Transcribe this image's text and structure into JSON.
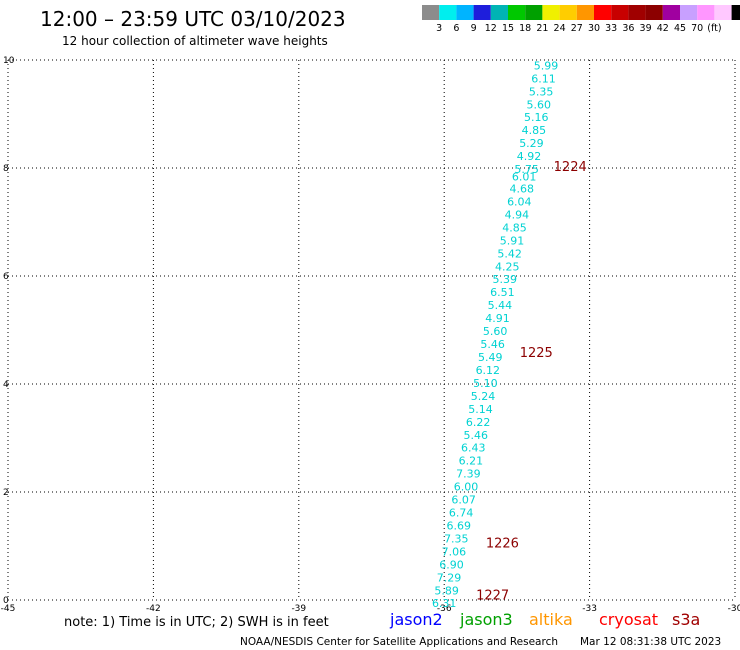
{
  "header": {
    "title": "12:00 – 23:59 UTC 03/10/2023",
    "subtitle": "12 hour collection of altimeter wave heights"
  },
  "colorbar": {
    "colors": [
      "#8c8c8c",
      "#00eeee",
      "#00b4ff",
      "#1e1edc",
      "#00b4b4",
      "#00c800",
      "#00a000",
      "#f0f000",
      "#ffcd00",
      "#ff9600",
      "#ff0000",
      "#c80000",
      "#a00000",
      "#8c0000",
      "#a000a0",
      "#c8a0ff",
      "#ff96ff",
      "#ffc8ff",
      "#000000"
    ],
    "labels": [
      "3",
      "6",
      "9",
      "12",
      "15",
      "18",
      "21",
      "24",
      "27",
      "30",
      "33",
      "36",
      "39",
      "42",
      "45",
      "70",
      "(ft)"
    ]
  },
  "chart_data": {
    "type": "scatter",
    "xlim": [
      -45,
      -30
    ],
    "ylim": [
      0,
      10
    ],
    "x_ticks": [
      "-45",
      "-42",
      "-39",
      "-36",
      "-33",
      "-30"
    ],
    "y_ticks": [
      "0",
      "2",
      "4",
      "6",
      "8",
      "10"
    ],
    "grid": true,
    "series": [
      {
        "name": "jason3",
        "color": "#00d2d2",
        "points": [
          {
            "x": -33.9,
            "y": 9.9,
            "v": "5.99"
          },
          {
            "x": -33.95,
            "y": 9.66,
            "v": "6.11"
          },
          {
            "x": -34.0,
            "y": 9.42,
            "v": "5.35"
          },
          {
            "x": -34.05,
            "y": 9.18,
            "v": "5.60"
          },
          {
            "x": -34.1,
            "y": 8.94,
            "v": "5.16"
          },
          {
            "x": -34.15,
            "y": 8.7,
            "v": "4.85"
          },
          {
            "x": -34.2,
            "y": 8.46,
            "v": "5.29"
          },
          {
            "x": -34.25,
            "y": 8.22,
            "v": "4.92"
          },
          {
            "x": -34.3,
            "y": 7.98,
            "v": "5.75"
          },
          {
            "x": -34.35,
            "y": 7.84,
            "v": "6.01"
          },
          {
            "x": -34.4,
            "y": 7.62,
            "v": "4.68"
          },
          {
            "x": -34.45,
            "y": 7.38,
            "v": "6.04"
          },
          {
            "x": -34.5,
            "y": 7.14,
            "v": "4.94"
          },
          {
            "x": -34.55,
            "y": 6.9,
            "v": "4.85"
          },
          {
            "x": -34.6,
            "y": 6.66,
            "v": "5.91"
          },
          {
            "x": -34.65,
            "y": 6.42,
            "v": "5.42"
          },
          {
            "x": -34.7,
            "y": 6.18,
            "v": "4.25"
          },
          {
            "x": -34.75,
            "y": 5.94,
            "v": "5.39"
          },
          {
            "x": -34.8,
            "y": 5.7,
            "v": "6.51"
          },
          {
            "x": -34.85,
            "y": 5.46,
            "v": "5.44"
          },
          {
            "x": -34.9,
            "y": 5.22,
            "v": "4.91"
          },
          {
            "x": -34.95,
            "y": 4.98,
            "v": "5.60"
          },
          {
            "x": -35.0,
            "y": 4.74,
            "v": "5.46"
          },
          {
            "x": -35.05,
            "y": 4.5,
            "v": "5.49"
          },
          {
            "x": -35.1,
            "y": 4.26,
            "v": "6.12"
          },
          {
            "x": -35.15,
            "y": 4.02,
            "v": "5.10"
          },
          {
            "x": -35.2,
            "y": 3.78,
            "v": "5.24"
          },
          {
            "x": -35.25,
            "y": 3.54,
            "v": "5.14"
          },
          {
            "x": -35.3,
            "y": 3.3,
            "v": "6.22"
          },
          {
            "x": -35.35,
            "y": 3.06,
            "v": "5.46"
          },
          {
            "x": -35.4,
            "y": 2.82,
            "v": "6.43"
          },
          {
            "x": -35.45,
            "y": 2.58,
            "v": "6.21"
          },
          {
            "x": -35.5,
            "y": 2.34,
            "v": "7.39"
          },
          {
            "x": -35.55,
            "y": 2.1,
            "v": "6.00"
          },
          {
            "x": -35.6,
            "y": 1.86,
            "v": "6.07"
          },
          {
            "x": -35.65,
            "y": 1.62,
            "v": "6.74"
          },
          {
            "x": -35.7,
            "y": 1.38,
            "v": "6.69"
          },
          {
            "x": -35.75,
            "y": 1.14,
            "v": "7.35"
          },
          {
            "x": -35.8,
            "y": 0.9,
            "v": "7.06"
          },
          {
            "x": -35.85,
            "y": 0.66,
            "v": "6.90"
          },
          {
            "x": -35.9,
            "y": 0.42,
            "v": "7.29"
          },
          {
            "x": -35.95,
            "y": 0.18,
            "v": "5.89"
          },
          {
            "x": -36.0,
            "y": -0.06,
            "v": "6.31"
          }
        ]
      }
    ],
    "annotations": [
      {
        "x": -33.4,
        "y": 8.02,
        "text": "1224"
      },
      {
        "x": -34.1,
        "y": 4.57,
        "text": "1225"
      },
      {
        "x": -34.8,
        "y": 1.05,
        "text": "1226"
      },
      {
        "x": -35.0,
        "y": 0.08,
        "text": "1227"
      }
    ],
    "annotation_color": "#8c0000"
  },
  "footer": {
    "note": "note: 1) Time is in UTC; 2) SWH is in feet",
    "legend": [
      {
        "name": "jason2",
        "color": "#0000ff"
      },
      {
        "name": "jason3",
        "color": "#00a000"
      },
      {
        "name": "altika",
        "color": "#ff9600"
      },
      {
        "name": "cryosat",
        "color": "#ff0000"
      },
      {
        "name": "s3a",
        "color": "#a00000"
      }
    ],
    "credit": "NOAA/NESDIS Center for Satellite Applications and Research",
    "timestamp": "Mar 12 08:31:38 UTC 2023"
  }
}
